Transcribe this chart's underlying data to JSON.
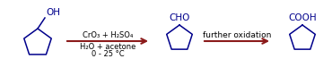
{
  "bg_color": "#ffffff",
  "molecule_color": "#00008B",
  "arrow_color": "#8B1A1A",
  "text_color": "#000000",
  "reagent_line1": "CrO₃ + H₂SO₄",
  "reagent_line2": "H₂O + acetone",
  "reagent_line3": "0 - 25 °C",
  "arrow2_label": "further oxidation",
  "mol1_label": "OH",
  "mol2_label": "CHO",
  "mol3_label": "COOH",
  "figw": 3.7,
  "figh": 0.94,
  "dpi": 100
}
